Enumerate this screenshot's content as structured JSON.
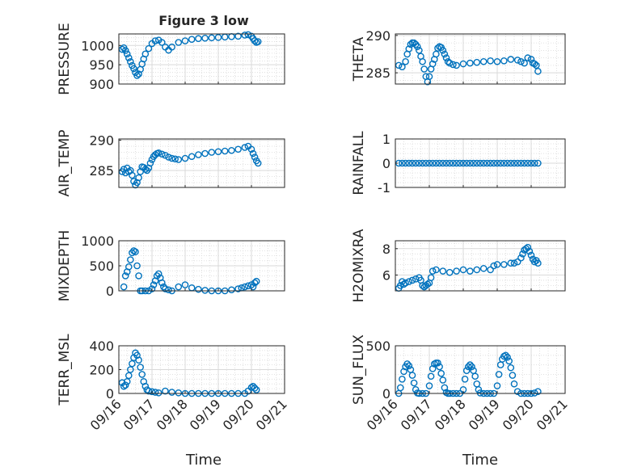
{
  "figure": {
    "title": "Figure 3 low",
    "xlabel": "Time",
    "xticks": [
      "09/16",
      "09/17",
      "09/18",
      "09/19",
      "09/20",
      "09/21"
    ]
  },
  "colors": {
    "marker": "#0072BD",
    "grid": "#d9d9d9",
    "axis": "#262626"
  },
  "chart_data": [
    {
      "type": "scatter",
      "ylabel": "PRESSURE",
      "ylim": [
        900,
        1030
      ],
      "yticks": [
        "900",
        "950",
        "1000"
      ],
      "ytick_values": [
        900,
        950,
        1000
      ],
      "x": [
        16.1,
        16.15,
        16.2,
        16.25,
        16.3,
        16.35,
        16.4,
        16.45,
        16.5,
        16.55,
        16.6,
        16.65,
        16.7,
        16.75,
        16.8,
        16.9,
        17.0,
        17.1,
        17.2,
        17.3,
        17.4,
        17.5,
        17.6,
        17.8,
        18.0,
        18.2,
        18.4,
        18.6,
        18.8,
        19.0,
        19.2,
        19.4,
        19.6,
        19.8,
        19.9,
        20.0,
        20.05,
        20.1,
        20.15,
        20.2
      ],
      "y": [
        990,
        994,
        987,
        978,
        968,
        958,
        948,
        940,
        930,
        922,
        926,
        938,
        952,
        965,
        978,
        992,
        1005,
        1012,
        1014,
        1008,
        996,
        988,
        996,
        1008,
        1012,
        1016,
        1018,
        1019,
        1020,
        1021,
        1022,
        1023,
        1024,
        1027,
        1028,
        1024,
        1018,
        1012,
        1008,
        1010
      ]
    },
    {
      "type": "scatter",
      "ylabel": "THETA",
      "ylim": [
        283.5,
        290.2
      ],
      "yticks": [
        "285",
        "290"
      ],
      "ytick_values": [
        285,
        290
      ],
      "x": [
        16.1,
        16.2,
        16.3,
        16.35,
        16.4,
        16.45,
        16.5,
        16.55,
        16.6,
        16.65,
        16.7,
        16.75,
        16.8,
        16.85,
        16.9,
        16.95,
        17.0,
        17.05,
        17.1,
        17.15,
        17.2,
        17.25,
        17.3,
        17.35,
        17.4,
        17.45,
        17.5,
        17.55,
        17.6,
        17.7,
        17.8,
        18.0,
        18.2,
        18.4,
        18.6,
        18.8,
        19.0,
        19.2,
        19.4,
        19.6,
        19.7,
        19.8,
        19.9,
        20.0,
        20.05,
        20.1,
        20.15,
        20.2
      ],
      "y": [
        286,
        285.8,
        286.5,
        287.5,
        288.2,
        288.8,
        289,
        289,
        288.8,
        288.5,
        288,
        287.2,
        286.5,
        285.5,
        284.5,
        283.8,
        284.5,
        285.5,
        286.2,
        286.8,
        287.5,
        288.3,
        288.5,
        288.4,
        288,
        287.5,
        287,
        286.5,
        286.3,
        286.1,
        286,
        286.2,
        286.3,
        286.4,
        286.5,
        286.6,
        286.5,
        286.6,
        286.8,
        286.7,
        286.5,
        286.3,
        287,
        286.8,
        286.3,
        286.2,
        286.0,
        285.2
      ]
    },
    {
      "type": "scatter",
      "ylabel": "AIR_TEMP",
      "ylim": [
        282.2,
        290.2
      ],
      "yticks": [
        "285",
        "290"
      ],
      "ytick_values": [
        285,
        290
      ],
      "x": [
        16.1,
        16.15,
        16.2,
        16.25,
        16.3,
        16.35,
        16.4,
        16.45,
        16.5,
        16.55,
        16.6,
        16.65,
        16.7,
        16.75,
        16.8,
        16.85,
        16.9,
        16.95,
        17.0,
        17.05,
        17.1,
        17.15,
        17.2,
        17.3,
        17.4,
        17.5,
        17.6,
        17.7,
        17.8,
        18.0,
        18.2,
        18.4,
        18.6,
        18.8,
        19.0,
        19.2,
        19.4,
        19.6,
        19.8,
        19.9,
        20.0,
        20.05,
        20.1,
        20.15,
        20.2
      ],
      "y": [
        284.8,
        285.2,
        284.6,
        285.4,
        284.8,
        285,
        284.2,
        283.2,
        282.6,
        283,
        283.8,
        284.8,
        285.6,
        285.5,
        285.2,
        285,
        285.4,
        286.2,
        286.8,
        287.3,
        287.6,
        287.8,
        287.9,
        287.7,
        287.5,
        287.2,
        287,
        286.9,
        286.8,
        287,
        287.3,
        287.6,
        287.8,
        288,
        288.1,
        288.2,
        288.3,
        288.5,
        288.8,
        289,
        288.5,
        287.8,
        287.2,
        286.6,
        286.2
      ]
    },
    {
      "type": "scatter",
      "ylabel": "RAINFALL",
      "ylim": [
        -1,
        1
      ],
      "yticks": [
        "-1",
        "0",
        "1"
      ],
      "ytick_values": [
        -1,
        0,
        1
      ],
      "x": [
        16.1,
        16.2,
        16.3,
        16.4,
        16.5,
        16.6,
        16.7,
        16.8,
        16.9,
        17.0,
        17.1,
        17.2,
        17.3,
        17.4,
        17.5,
        17.6,
        17.7,
        17.8,
        17.9,
        18.0,
        18.1,
        18.2,
        18.3,
        18.4,
        18.5,
        18.6,
        18.7,
        18.8,
        18.9,
        19.0,
        19.1,
        19.2,
        19.3,
        19.4,
        19.5,
        19.6,
        19.7,
        19.8,
        19.9,
        20.0,
        20.1,
        20.2
      ],
      "y": [
        0,
        0,
        0,
        0,
        0,
        0,
        0,
        0,
        0,
        0,
        0,
        0,
        0,
        0,
        0,
        0,
        0,
        0,
        0,
        0,
        0,
        0,
        0,
        0,
        0,
        0,
        0,
        0,
        0,
        0,
        0,
        0,
        0,
        0,
        0,
        0,
        0,
        0,
        0,
        0,
        0,
        0
      ]
    },
    {
      "type": "scatter",
      "ylabel": "MIXDEPTH",
      "ylim": [
        0,
        1000
      ],
      "yticks": [
        "0",
        "500",
        "1000"
      ],
      "ytick_values": [
        0,
        500,
        1000
      ],
      "x": [
        16.15,
        16.2,
        16.25,
        16.3,
        16.35,
        16.4,
        16.45,
        16.5,
        16.55,
        16.6,
        16.65,
        16.7,
        16.8,
        16.9,
        17.0,
        17.05,
        17.1,
        17.15,
        17.2,
        17.25,
        17.3,
        17.35,
        17.4,
        17.5,
        17.6,
        17.8,
        18.0,
        18.2,
        18.4,
        18.6,
        18.8,
        19.0,
        19.2,
        19.4,
        19.6,
        19.7,
        19.8,
        19.9,
        20.0,
        20.05,
        20.1,
        20.15
      ],
      "y": [
        80,
        300,
        380,
        480,
        620,
        760,
        800,
        780,
        500,
        300,
        0,
        0,
        0,
        0,
        40,
        120,
        200,
        300,
        340,
        260,
        160,
        80,
        40,
        20,
        0,
        80,
        120,
        60,
        30,
        10,
        0,
        0,
        0,
        20,
        40,
        60,
        80,
        100,
        120,
        80,
        160,
        190
      ]
    },
    {
      "type": "scatter",
      "ylabel": "H2OMIXRA",
      "ylim": [
        4.8,
        8.6
      ],
      "yticks": [
        "6",
        "8"
      ],
      "ytick_values": [
        6,
        8
      ],
      "x": [
        16.1,
        16.15,
        16.2,
        16.25,
        16.3,
        16.4,
        16.5,
        16.6,
        16.7,
        16.75,
        16.8,
        16.85,
        16.9,
        16.95,
        17.0,
        17.05,
        17.1,
        17.2,
        17.4,
        17.6,
        17.8,
        18.0,
        18.2,
        18.4,
        18.6,
        18.8,
        18.9,
        19.0,
        19.2,
        19.4,
        19.5,
        19.6,
        19.7,
        19.75,
        19.8,
        19.85,
        19.9,
        19.95,
        20.0,
        20.05,
        20.1,
        20.15,
        20.2
      ],
      "y": [
        5,
        5.2,
        5.5,
        5.3,
        5.4,
        5.5,
        5.6,
        5.7,
        5.8,
        5.6,
        5.2,
        5.1,
        5.2,
        5.3,
        5.4,
        5.8,
        6.3,
        6.4,
        6.3,
        6.2,
        6.3,
        6.4,
        6.3,
        6.4,
        6.5,
        6.4,
        6.7,
        6.8,
        6.8,
        6.9,
        6.9,
        7.0,
        7.3,
        7.6,
        7.9,
        8.0,
        8.1,
        7.8,
        7.5,
        7.2,
        7.0,
        7.1,
        6.9
      ]
    },
    {
      "type": "scatter",
      "ylabel": "TERR_MSL",
      "ylim": [
        0,
        400
      ],
      "yticks": [
        "0",
        "200",
        "400"
      ],
      "ytick_values": [
        0,
        200,
        400
      ],
      "x": [
        16.1,
        16.15,
        16.2,
        16.25,
        16.3,
        16.35,
        16.4,
        16.45,
        16.5,
        16.55,
        16.6,
        16.65,
        16.7,
        16.75,
        16.8,
        16.85,
        16.9,
        17.0,
        17.1,
        17.2,
        17.4,
        17.6,
        17.8,
        18.0,
        18.2,
        18.4,
        18.6,
        18.8,
        19.0,
        19.2,
        19.4,
        19.6,
        19.8,
        19.9,
        20.0,
        20.05,
        20.1,
        20.15
      ],
      "y": [
        90,
        60,
        70,
        100,
        150,
        200,
        250,
        300,
        340,
        320,
        280,
        220,
        160,
        100,
        60,
        30,
        20,
        15,
        10,
        5,
        20,
        10,
        5,
        0,
        0,
        0,
        0,
        0,
        0,
        0,
        0,
        0,
        0,
        20,
        50,
        60,
        45,
        30
      ]
    },
    {
      "type": "scatter",
      "ylabel": "SUN_FLUX",
      "ylim": [
        0,
        500
      ],
      "yticks": [
        "0",
        "500"
      ],
      "ytick_values": [
        0,
        500
      ],
      "x": [
        16.1,
        16.15,
        16.2,
        16.25,
        16.3,
        16.35,
        16.4,
        16.45,
        16.5,
        16.55,
        16.6,
        16.65,
        16.7,
        16.8,
        16.9,
        17.0,
        17.05,
        17.1,
        17.15,
        17.2,
        17.25,
        17.3,
        17.35,
        17.4,
        17.45,
        17.5,
        17.55,
        17.6,
        17.7,
        17.8,
        17.9,
        18.0,
        18.05,
        18.1,
        18.15,
        18.2,
        18.25,
        18.3,
        18.35,
        18.4,
        18.45,
        18.5,
        18.6,
        18.7,
        18.8,
        18.9,
        19.0,
        19.05,
        19.1,
        19.15,
        19.2,
        19.25,
        19.3,
        19.35,
        19.4,
        19.45,
        19.5,
        19.6,
        19.7,
        19.8,
        19.9,
        20.0,
        20.1,
        20.2
      ],
      "y": [
        0,
        60,
        150,
        230,
        280,
        310,
        290,
        250,
        190,
        110,
        40,
        5,
        0,
        0,
        0,
        80,
        180,
        260,
        310,
        320,
        320,
        280,
        210,
        140,
        60,
        10,
        0,
        0,
        0,
        0,
        0,
        40,
        150,
        240,
        280,
        300,
        280,
        240,
        180,
        100,
        40,
        5,
        0,
        0,
        0,
        0,
        80,
        200,
        300,
        360,
        390,
        400,
        380,
        340,
        270,
        190,
        100,
        20,
        0,
        0,
        0,
        0,
        5,
        20
      ]
    }
  ]
}
